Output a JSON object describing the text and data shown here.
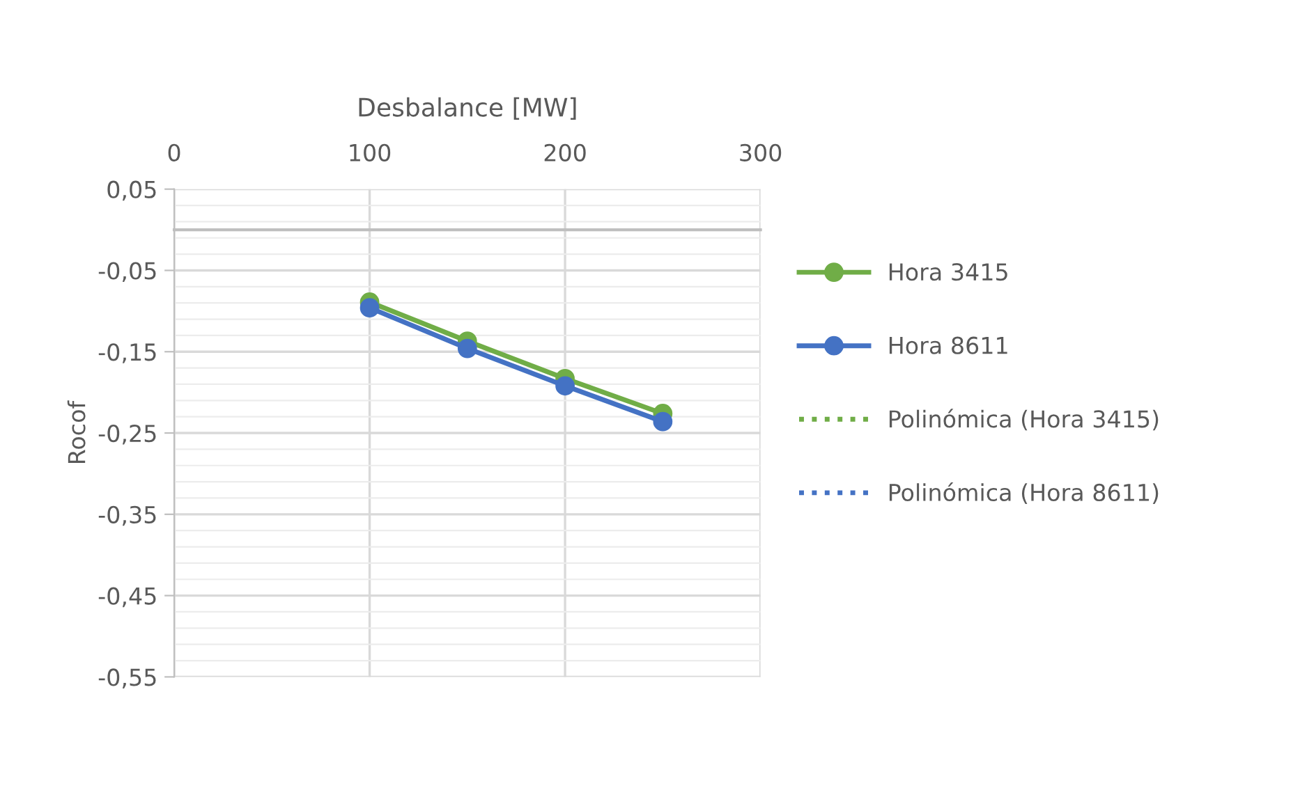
{
  "chart_data": {
    "type": "line",
    "xlabel": "Desbalance [MW]",
    "ylabel": "Rocof",
    "x": [
      100,
      150,
      200,
      250
    ],
    "series": [
      {
        "name": "Hora 3415",
        "color": "#70ad47",
        "values": [
          -0.089,
          -0.137,
          -0.183,
          -0.226
        ],
        "marker": "circle",
        "line_style": "solid"
      },
      {
        "name": "Hora 8611",
        "color": "#4472c4",
        "values": [
          -0.096,
          -0.146,
          -0.192,
          -0.236
        ],
        "marker": "circle",
        "line_style": "solid"
      },
      {
        "name": "Polinómica (Hora 3415)",
        "color": "#70ad47",
        "values": [
          null,
          null,
          null,
          null
        ],
        "marker": "none",
        "line_style": "dotted"
      },
      {
        "name": "Polinómica (Hora 8611)",
        "color": "#4472c4",
        "values": [
          null,
          null,
          null,
          null
        ],
        "marker": "none",
        "line_style": "dotted"
      }
    ],
    "xlim": [
      0,
      300
    ],
    "xticks": [
      0,
      100,
      200,
      300
    ],
    "ylim": [
      -0.55,
      0.05
    ],
    "yticks": [
      {
        "value": 0.05,
        "label": "0,05"
      },
      {
        "value": -0.05,
        "label": "-0,05"
      },
      {
        "value": -0.15,
        "label": "-0,15"
      },
      {
        "value": -0.25,
        "label": "-0,25"
      },
      {
        "value": -0.35,
        "label": "-0,35"
      },
      {
        "value": -0.45,
        "label": "-0,45"
      },
      {
        "value": -0.55,
        "label": "-0,55"
      }
    ],
    "grid": true,
    "legend": "right"
  }
}
